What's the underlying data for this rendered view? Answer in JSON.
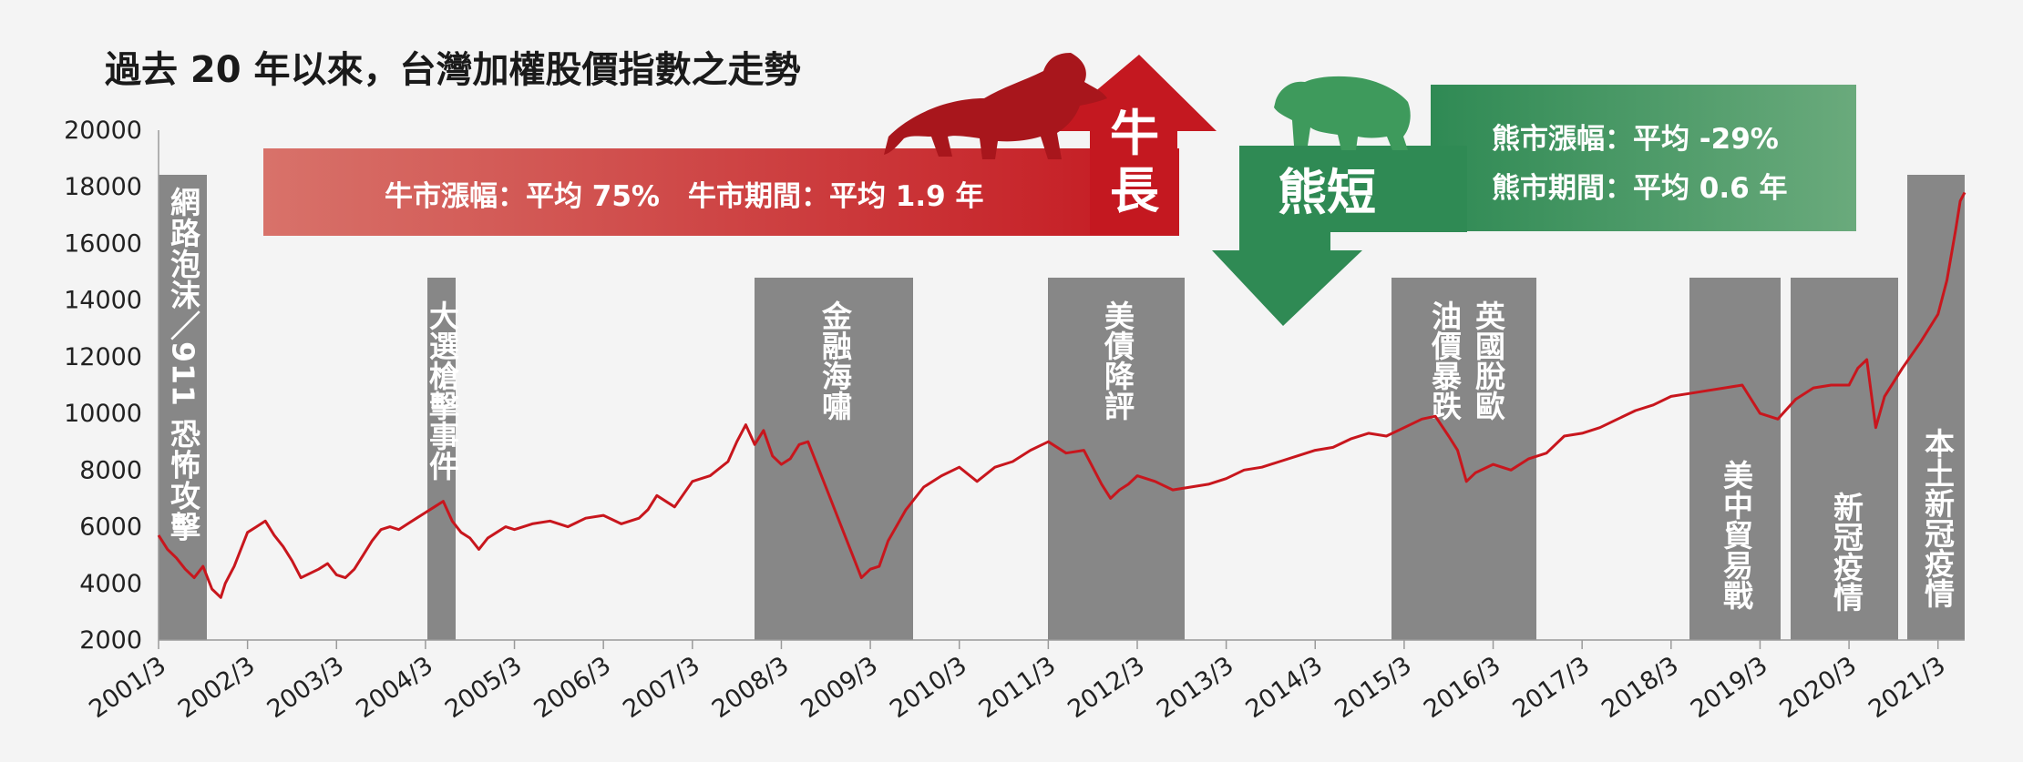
{
  "chart_data": {
    "type": "line",
    "title": "過去 20 年以來，台灣加權股價指數之走勢",
    "xlabel": "",
    "ylabel": "",
    "ylim": [
      2000,
      20000
    ],
    "yticks": [
      2000,
      4000,
      6000,
      8000,
      10000,
      12000,
      14000,
      16000,
      18000,
      20000
    ],
    "xticks": [
      "2001/3",
      "2002/3",
      "2003/3",
      "2004/3",
      "2005/3",
      "2006/3",
      "2007/3",
      "2008/3",
      "2009/3",
      "2010/3",
      "2011/3",
      "2012/3",
      "2013/3",
      "2014/3",
      "2015/3",
      "2016/3",
      "2017/3",
      "2018/3",
      "2019/3",
      "2020/3",
      "2021/3"
    ],
    "xlim": [
      2001.0,
      2021.3
    ],
    "grid": false,
    "line_color": "#c8161d",
    "series": [
      {
        "x": [
          2001.0,
          2001.1,
          2001.2,
          2001.3,
          2001.4,
          2001.5,
          2001.6,
          2001.7,
          2001.75,
          2001.85,
          2002.0,
          2002.1,
          2002.2,
          2002.3,
          2002.4,
          2002.5,
          2002.6,
          2002.8,
          2002.9,
          2003.0,
          2003.1,
          2003.2,
          2003.3,
          2003.4,
          2003.5,
          2003.6,
          2003.7,
          2003.8,
          2003.9,
          2004.0,
          2004.1,
          2004.2,
          2004.3,
          2004.4,
          2004.5,
          2004.6,
          2004.7,
          2004.8,
          2004.9,
          2005.0,
          2005.2,
          2005.4,
          2005.6,
          2005.8,
          2006.0,
          2006.2,
          2006.4,
          2006.5,
          2006.6,
          2006.8,
          2007.0,
          2007.2,
          2007.4,
          2007.5,
          2007.6,
          2007.7,
          2007.8,
          2007.9,
          2008.0,
          2008.1,
          2008.2,
          2008.3,
          2008.5,
          2008.7,
          2008.9,
          2009.0,
          2009.1,
          2009.2,
          2009.4,
          2009.6,
          2009.8,
          2010.0,
          2010.2,
          2010.4,
          2010.6,
          2010.8,
          2011.0,
          2011.2,
          2011.4,
          2011.6,
          2011.7,
          2011.8,
          2011.9,
          2012.0,
          2012.2,
          2012.4,
          2012.6,
          2012.8,
          2013.0,
          2013.2,
          2013.4,
          2013.6,
          2013.8,
          2014.0,
          2014.2,
          2014.4,
          2014.6,
          2014.8,
          2015.0,
          2015.2,
          2015.35,
          2015.5,
          2015.6,
          2015.7,
          2015.8,
          2016.0,
          2016.2,
          2016.4,
          2016.6,
          2016.8,
          2017.0,
          2017.2,
          2017.4,
          2017.6,
          2017.8,
          2018.0,
          2018.2,
          2018.4,
          2018.6,
          2018.8,
          2019.0,
          2019.2,
          2019.4,
          2019.6,
          2019.8,
          2020.0,
          2020.1,
          2020.2,
          2020.3,
          2020.4,
          2020.6,
          2020.8,
          2021.0,
          2021.1,
          2021.2,
          2021.25,
          2021.3
        ],
        "values": [
          5700,
          5200,
          4900,
          4500,
          4200,
          4600,
          3800,
          3500,
          4000,
          4600,
          5800,
          6000,
          6200,
          5700,
          5300,
          4800,
          4200,
          4500,
          4700,
          4300,
          4200,
          4500,
          5000,
          5500,
          5900,
          6000,
          5900,
          6100,
          6300,
          6500,
          6700,
          6900,
          6200,
          5800,
          5600,
          5200,
          5600,
          5800,
          6000,
          5900,
          6100,
          6200,
          6000,
          6300,
          6400,
          6100,
          6300,
          6600,
          7100,
          6700,
          7600,
          7800,
          8300,
          9000,
          9600,
          8900,
          9400,
          8500,
          8200,
          8400,
          8900,
          9000,
          7400,
          5800,
          4200,
          4500,
          4600,
          5500,
          6600,
          7400,
          7800,
          8100,
          7600,
          8100,
          8300,
          8700,
          9000,
          8600,
          8700,
          7500,
          7000,
          7300,
          7500,
          7800,
          7600,
          7300,
          7400,
          7500,
          7700,
          8000,
          8100,
          8300,
          8500,
          8700,
          8800,
          9100,
          9300,
          9200,
          9500,
          9800,
          9900,
          9200,
          8700,
          7600,
          7900,
          8200,
          8000,
          8400,
          8600,
          9200,
          9300,
          9500,
          9800,
          10100,
          10300,
          10600,
          10700,
          10800,
          10900,
          11000,
          10000,
          9800,
          10500,
          10900,
          11000,
          11000,
          11600,
          11900,
          9500,
          10600,
          11600,
          12500,
          13500,
          14700,
          16500,
          17500,
          17800
        ]
      }
    ],
    "events": [
      {
        "label": "網路泡沫／911 恐怖攻擊",
        "period": "2001"
      },
      {
        "label": "大選槍擊事件",
        "period": "2004"
      },
      {
        "label": "金融海嘯",
        "period": "2008-2009"
      },
      {
        "label": "美債降評",
        "period": "2011"
      },
      {
        "label": "油價暴跌",
        "period": "2015"
      },
      {
        "label": "英國脫歐",
        "period": "2016"
      },
      {
        "label": "美中貿易戰",
        "period": "2018-2019"
      },
      {
        "label": "新冠疫情",
        "period": "2020"
      },
      {
        "label": "本土新冠疫情",
        "period": "2021"
      }
    ],
    "bull": {
      "big_label": "牛長",
      "text": "牛市漲幅：平均 75%　牛市期間：平均 1.9 年",
      "color": "#c8161d"
    },
    "bear": {
      "big_label": "熊短",
      "line1": "熊市漲幅：平均 -29%",
      "line2": "熊市期間：平均 0.6 年",
      "color": "#2e8a53"
    }
  }
}
